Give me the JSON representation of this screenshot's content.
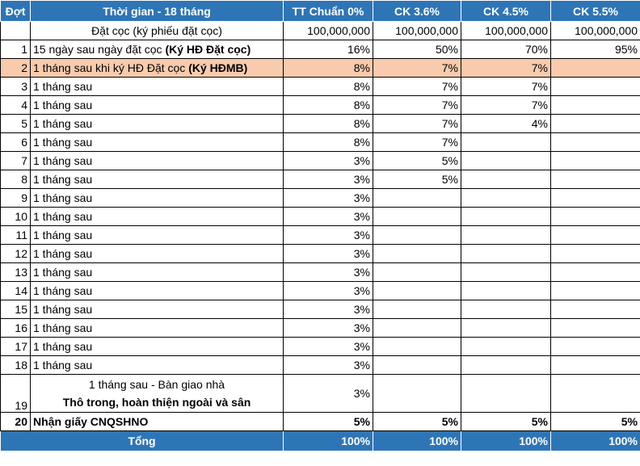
{
  "headers": [
    "Đợt",
    "Thời gian - 18 tháng",
    "TT Chuẩn 0%",
    "CK 3.6%",
    "CK 4.5%",
    "CK 5.5%"
  ],
  "deposit_row": {
    "label": "Đặt cọc (ký phiếu đặt cọc)",
    "values": [
      "100,000,000",
      "100,000,000",
      "100,000,000",
      "100,000,000"
    ]
  },
  "rows": [
    {
      "no": "1",
      "desc": "15 ngày sau ngày đặt cọc ",
      "desc_bold": "(Ký HĐ Đặt cọc)",
      "v": [
        "16%",
        "50%",
        "70%",
        "95%"
      ]
    },
    {
      "no": "2",
      "desc": "1 tháng sau khi ký HĐ Đặt cọc ",
      "desc_bold": "(Ký HĐMB)",
      "v": [
        "8%",
        "7%",
        "7%",
        ""
      ]
    },
    {
      "no": "3",
      "desc": "1 tháng sau",
      "desc_bold": "",
      "v": [
        "8%",
        "7%",
        "7%",
        ""
      ]
    },
    {
      "no": "4",
      "desc": "1 tháng sau",
      "desc_bold": "",
      "v": [
        "8%",
        "7%",
        "7%",
        ""
      ]
    },
    {
      "no": "5",
      "desc": "1 tháng sau",
      "desc_bold": "",
      "v": [
        "8%",
        "7%",
        "4%",
        ""
      ]
    },
    {
      "no": "6",
      "desc": "1 tháng sau",
      "desc_bold": "",
      "v": [
        "8%",
        "7%",
        "",
        ""
      ]
    },
    {
      "no": "7",
      "desc": "1 tháng sau",
      "desc_bold": "",
      "v": [
        "3%",
        "5%",
        "",
        ""
      ]
    },
    {
      "no": "8",
      "desc": "1 tháng sau",
      "desc_bold": "",
      "v": [
        "3%",
        "5%",
        "",
        ""
      ]
    },
    {
      "no": "9",
      "desc": "1 tháng sau",
      "desc_bold": "",
      "v": [
        "3%",
        "",
        "",
        ""
      ]
    },
    {
      "no": "10",
      "desc": "1 tháng sau",
      "desc_bold": "",
      "v": [
        "3%",
        "",
        "",
        ""
      ]
    },
    {
      "no": "11",
      "desc": "1 tháng sau",
      "desc_bold": "",
      "v": [
        "3%",
        "",
        "",
        ""
      ]
    },
    {
      "no": "12",
      "desc": "1 tháng sau",
      "desc_bold": "",
      "v": [
        "3%",
        "",
        "",
        ""
      ]
    },
    {
      "no": "13",
      "desc": "1 tháng sau",
      "desc_bold": "",
      "v": [
        "3%",
        "",
        "",
        ""
      ]
    },
    {
      "no": "14",
      "desc": "1 tháng sau",
      "desc_bold": "",
      "v": [
        "3%",
        "",
        "",
        ""
      ]
    },
    {
      "no": "15",
      "desc": "1 tháng sau",
      "desc_bold": "",
      "v": [
        "3%",
        "",
        "",
        ""
      ]
    },
    {
      "no": "16",
      "desc": "1 tháng sau",
      "desc_bold": "",
      "v": [
        "3%",
        "",
        "",
        ""
      ]
    },
    {
      "no": "17",
      "desc": "1 tháng sau",
      "desc_bold": "",
      "v": [
        "3%",
        "",
        "",
        ""
      ]
    },
    {
      "no": "18",
      "desc": "1 tháng sau",
      "desc_bold": "",
      "v": [
        "3%",
        "",
        "",
        ""
      ]
    }
  ],
  "row19": {
    "no": "19",
    "line1": "1 tháng sau - Bàn giao nhà",
    "line2": "Thô trong, hoàn thiện ngoài và sân",
    "v": [
      "3%",
      "",
      "",
      ""
    ]
  },
  "row20": {
    "no": "20",
    "desc": "Nhận giấy CNQSHNO",
    "v": [
      "5%",
      "5%",
      "5%",
      "5%"
    ]
  },
  "total": {
    "label": "Tổng",
    "v": [
      "100%",
      "100%",
      "100%",
      "100%"
    ]
  },
  "colors": {
    "header_bg": "#2e75b6",
    "highlight_bg": "#f8cbad"
  }
}
